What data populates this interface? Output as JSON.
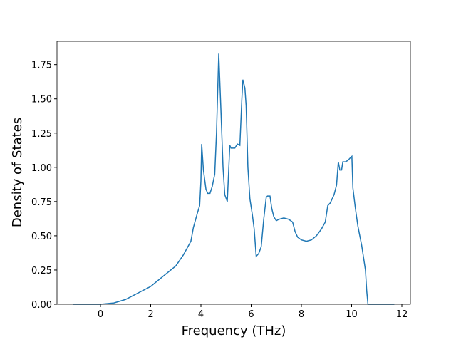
{
  "chart_data": {
    "type": "line",
    "xlabel": "Frequency (THz)",
    "ylabel": "Density of States",
    "x": [
      -1.1,
      0,
      0.54,
      1.0,
      2.0,
      3.0,
      3.3,
      3.6,
      3.7,
      3.85,
      3.95,
      4.0,
      4.03,
      4.1,
      4.2,
      4.27,
      4.36,
      4.45,
      4.55,
      4.62,
      4.71,
      4.8,
      4.88,
      4.95,
      5.05,
      5.15,
      5.2,
      5.35,
      5.45,
      5.55,
      5.63,
      5.67,
      5.75,
      5.8,
      5.87,
      5.95,
      6.05,
      6.12,
      6.2,
      6.3,
      6.4,
      6.5,
      6.6,
      6.65,
      6.75,
      6.82,
      6.9,
      7.0,
      7.1,
      7.3,
      7.5,
      7.65,
      7.75,
      7.85,
      8.0,
      8.2,
      8.4,
      8.6,
      8.8,
      8.95,
      9.05,
      9.15,
      9.3,
      9.4,
      9.47,
      9.53,
      9.6,
      9.65,
      9.75,
      9.85,
      9.95,
      10.01,
      10.05,
      10.15,
      10.25,
      10.4,
      10.55,
      10.6,
      10.65,
      11.7
    ],
    "series": [
      {
        "color": "#1f77b4",
        "values": [
          0,
          0,
          0.01,
          0.035,
          0.13,
          0.28,
          0.36,
          0.46,
          0.56,
          0.66,
          0.72,
          0.9,
          1.17,
          0.98,
          0.84,
          0.81,
          0.81,
          0.86,
          0.95,
          1.25,
          1.83,
          1.4,
          1.0,
          0.8,
          0.75,
          1.16,
          1.14,
          1.14,
          1.17,
          1.16,
          1.5,
          1.64,
          1.58,
          1.45,
          1.0,
          0.77,
          0.65,
          0.55,
          0.35,
          0.37,
          0.42,
          0.62,
          0.78,
          0.79,
          0.79,
          0.7,
          0.64,
          0.61,
          0.62,
          0.63,
          0.62,
          0.6,
          0.53,
          0.49,
          0.47,
          0.46,
          0.47,
          0.5,
          0.55,
          0.6,
          0.72,
          0.74,
          0.8,
          0.87,
          1.04,
          0.98,
          0.98,
          1.04,
          1.04,
          1.05,
          1.07,
          1.08,
          0.85,
          0.7,
          0.57,
          0.43,
          0.25,
          0.1,
          0,
          0
        ]
      }
    ],
    "xlim": [
      -1.73,
      12.34
    ],
    "ylim": [
      0,
      1.92
    ],
    "xticks": [
      0,
      2,
      4,
      6,
      8,
      10,
      12
    ],
    "yticks": [
      {
        "value": 0,
        "label": "0.00"
      },
      {
        "value": 0.25,
        "label": "0.25"
      },
      {
        "value": 0.5,
        "label": "0.50"
      },
      {
        "value": 0.75,
        "label": "0.75"
      },
      {
        "value": 1,
        "label": "1.00"
      },
      {
        "value": 1.25,
        "label": "1.25"
      },
      {
        "value": 1.5,
        "label": "1.50"
      },
      {
        "value": 1.75,
        "label": "1.75"
      }
    ]
  }
}
